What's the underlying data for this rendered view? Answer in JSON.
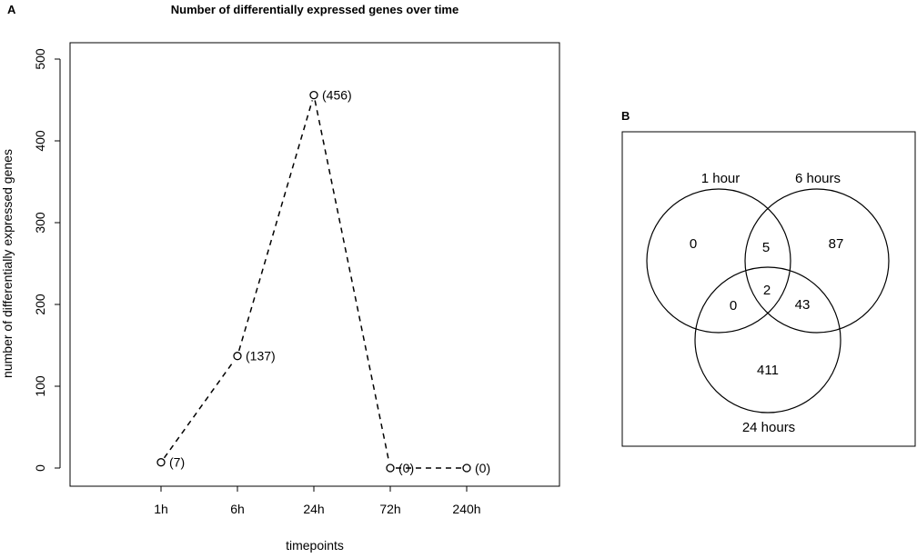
{
  "panels": {
    "a": {
      "label": "A",
      "chart_data": {
        "type": "line",
        "title": "Number of differentially expressed genes over time",
        "xlabel": "timepoints",
        "ylabel": "number of differentially expressed genes",
        "categories": [
          "1h",
          "6h",
          "24h",
          "72h",
          "240h"
        ],
        "values": [
          7,
          137,
          456,
          0,
          0
        ],
        "data_labels": [
          "(7)",
          "(137)",
          "(456)",
          "(0)",
          "(0)"
        ],
        "yticks": [
          0,
          100,
          200,
          300,
          400,
          500
        ],
        "ylim": [
          0,
          500
        ],
        "line_style": "dashed",
        "marker": "open-circle",
        "grid": false,
        "legend": "none"
      }
    },
    "b": {
      "label": "B",
      "venn": {
        "sets": [
          "1 hour",
          "6 hours",
          "24 hours"
        ],
        "regions": {
          "only_1h": "0",
          "only_6h": "87",
          "only_24h": "411",
          "1h_6h": "5",
          "1h_24h": "0",
          "6h_24h": "43",
          "all_three": "2"
        }
      }
    }
  }
}
